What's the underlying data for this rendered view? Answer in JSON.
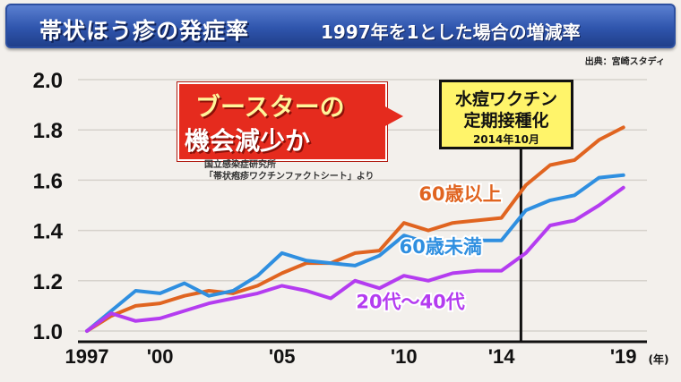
{
  "header": {
    "title": "帯状ほう疹の発症率",
    "subtitle": "1997年を1とした場合の増減率",
    "source": "出典：宮崎スタディ"
  },
  "callout": {
    "line1": "ブースターの",
    "line2": "機会減少か",
    "note_line1": "国立感染症研究所",
    "note_line2": "「帯状疱疹ワクチンファクトシート」より"
  },
  "vaccine_box": {
    "line1": "水痘ワクチン",
    "line2": "定期接種化",
    "line3": "2014年10月"
  },
  "colors": {
    "over60": "#e06420",
    "under60": "#2f8fe0",
    "age20to40": "#b43cf0",
    "event_line": "#111111"
  },
  "chart_data": {
    "type": "line",
    "title": "帯状ほう疹の発症率",
    "subtitle": "1997年を1とした場合の増減率",
    "xlabel": "(年)",
    "ylabel": "",
    "xlim": [
      1997,
      2019.6
    ],
    "ylim": [
      1.0,
      2.0
    ],
    "y_ticks": [
      1.0,
      1.2,
      1.4,
      1.6,
      1.8,
      2.0
    ],
    "y_tick_labels": [
      "1.0",
      "1.2",
      "1.4",
      "1.6",
      "1.8",
      "2.0"
    ],
    "x_ticks": [
      1997,
      2000,
      2005,
      2010,
      2014,
      2019
    ],
    "x_tick_labels": [
      "1997",
      "'00",
      "'05",
      "'10",
      "'14",
      "'19"
    ],
    "x_unit_label": "(年)",
    "grid": true,
    "event_marker": {
      "x": 2014.8
    },
    "series": [
      {
        "name": "60歳以上",
        "color": "#e06420",
        "x": [
          1997,
          1998,
          1999,
          2000,
          2001,
          2002,
          2003,
          2004,
          2005,
          2006,
          2007,
          2008,
          2009,
          2010,
          2011,
          2012,
          2013,
          2014,
          2015,
          2016,
          2017,
          2018,
          2019
        ],
        "values": [
          1.0,
          1.06,
          1.1,
          1.11,
          1.14,
          1.16,
          1.15,
          1.18,
          1.23,
          1.27,
          1.27,
          1.31,
          1.32,
          1.43,
          1.4,
          1.43,
          1.44,
          1.45,
          1.58,
          1.66,
          1.68,
          1.76,
          1.81
        ]
      },
      {
        "name": "60歳未満",
        "color": "#2f8fe0",
        "x": [
          1997,
          1998,
          1999,
          2000,
          2001,
          2002,
          2003,
          2004,
          2005,
          2006,
          2007,
          2008,
          2009,
          2010,
          2011,
          2012,
          2013,
          2014,
          2015,
          2016,
          2017,
          2018,
          2019
        ],
        "values": [
          1.0,
          1.08,
          1.16,
          1.15,
          1.19,
          1.14,
          1.16,
          1.22,
          1.31,
          1.28,
          1.27,
          1.26,
          1.3,
          1.38,
          1.35,
          1.36,
          1.36,
          1.36,
          1.48,
          1.52,
          1.54,
          1.61,
          1.62
        ]
      },
      {
        "name": "20代～40代",
        "color": "#b43cf0",
        "x": [
          1997,
          1998,
          1999,
          2000,
          2001,
          2002,
          2003,
          2004,
          2005,
          2006,
          2007,
          2008,
          2009,
          2010,
          2011,
          2012,
          2013,
          2014,
          2015,
          2016,
          2017,
          2018,
          2019
        ],
        "values": [
          1.0,
          1.07,
          1.04,
          1.05,
          1.08,
          1.11,
          1.13,
          1.15,
          1.18,
          1.16,
          1.13,
          1.2,
          1.17,
          1.22,
          1.2,
          1.23,
          1.24,
          1.24,
          1.31,
          1.42,
          1.44,
          1.5,
          1.57
        ]
      }
    ]
  }
}
